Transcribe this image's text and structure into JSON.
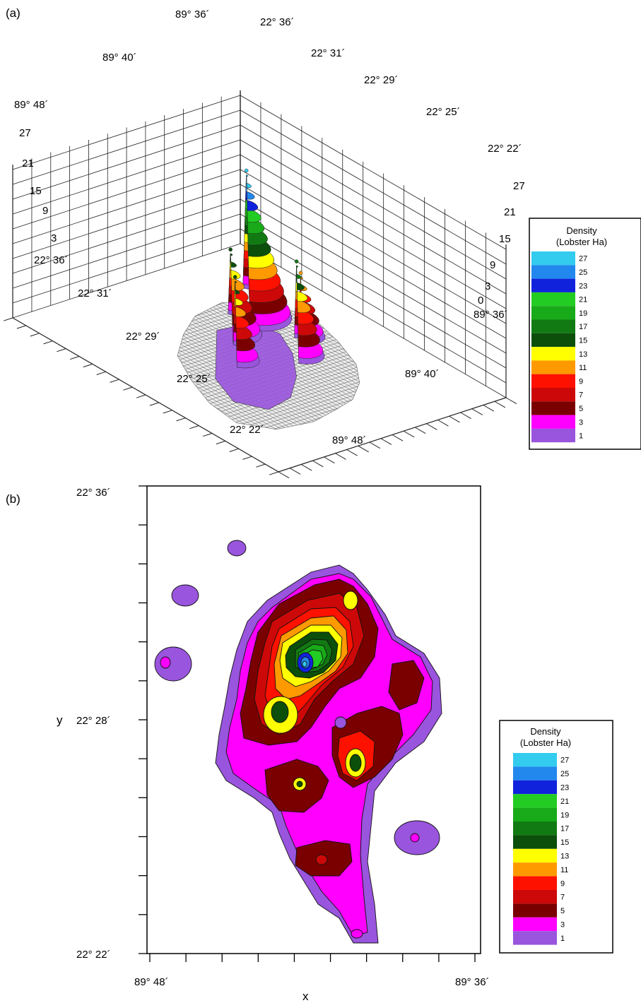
{
  "chart_data": [
    {
      "type": "surface3d",
      "panel_label": "(a)",
      "x_ticks": [
        "89° 36´",
        "89° 40´",
        "89° 48´"
      ],
      "y_ticks": [
        "22° 36´",
        "22° 31´",
        "22° 29´",
        "22° 25´",
        "22° 22´"
      ],
      "z_ticks": [
        27,
        21,
        15,
        9,
        3
      ],
      "z_ticks_right": [
        27,
        21,
        15,
        9,
        3,
        0
      ],
      "front_x_ticks": [
        "89° 36´",
        "89° 40´",
        "89° 48´"
      ],
      "front_y_ticks": [
        "22° 36´",
        "22° 31´",
        "22° 29´",
        "22° 25´",
        "22° 22´"
      ],
      "zlim": [
        0,
        30
      ],
      "peaks": [
        {
          "name": "main",
          "height": 27
        },
        {
          "name": "west",
          "height": 15
        },
        {
          "name": "east",
          "height": 17
        },
        {
          "name": "center",
          "height": 15
        },
        {
          "name": "north",
          "height": 11
        }
      ],
      "legend": {
        "title_line1": "Density",
        "title_line2": "(Lobster Ha)",
        "levels": [
          27,
          25,
          23,
          21,
          19,
          17,
          15,
          13,
          11,
          9,
          7,
          5,
          3,
          1
        ]
      }
    },
    {
      "type": "contour",
      "panel_label": "(b)",
      "xlabel": "x",
      "ylabel": "y",
      "x_ticks": [
        "89° 48´",
        "89° 36´"
      ],
      "y_ticks": [
        "22° 36´",
        "22° 28´",
        "22° 22´"
      ],
      "xlim": [
        "89° 48´",
        "89° 36´"
      ],
      "ylim": [
        "22° 22´",
        "22° 36´"
      ],
      "legend": {
        "title_line1": "Density",
        "title_line2": "(Lobster Ha)",
        "levels": [
          27,
          25,
          23,
          21,
          19,
          17,
          15,
          13,
          11,
          9,
          7,
          5,
          3,
          1
        ]
      }
    }
  ],
  "colors": {
    "27": "#33ccee",
    "25": "#2288ee",
    "23": "#1122dd",
    "21": "#22cc22",
    "19": "#18aa18",
    "17": "#127a12",
    "15": "#0b4f0b",
    "13": "#ffff00",
    "11": "#ff9900",
    "9": "#ff1100",
    "7": "#cc0808",
    "5": "#7a0000",
    "3": "#ff00ff",
    "1": "#9955dd"
  }
}
